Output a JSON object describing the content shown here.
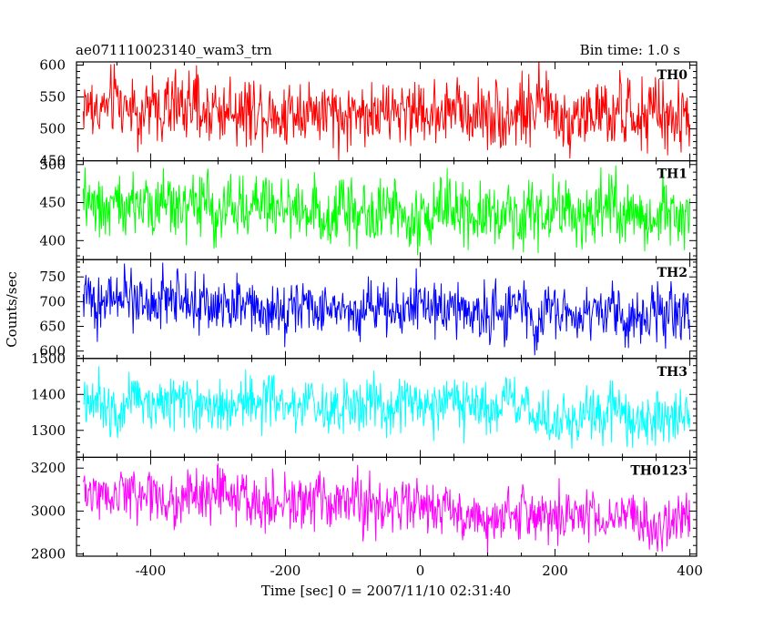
{
  "header": {
    "left_title": "ae071110023140_wam3_trn",
    "right_title": "Bin time: 1.0 s"
  },
  "chart_data": {
    "type": "line",
    "xlabel": "Time [sec] 0 = 2007/11/10 02:31:40",
    "ylabel": "Counts/sec",
    "xlim": [
      -510,
      410
    ],
    "x_range": [
      -500,
      400
    ],
    "x_step": 1.0,
    "xticks": [
      -400,
      -200,
      0,
      200,
      400
    ],
    "grid": false,
    "series": [
      {
        "name": "TH0",
        "color": "#ff0000",
        "ylim": [
          450,
          605
        ],
        "yticks": [
          450,
          500,
          550,
          600
        ],
        "start_level": 535,
        "end_level": 520,
        "noise_sd": 26
      },
      {
        "name": "TH1",
        "color": "#00ff00",
        "ylim": [
          375,
          505
        ],
        "yticks": [
          400,
          450,
          500
        ],
        "start_level": 448,
        "end_level": 433,
        "noise_sd": 21
      },
      {
        "name": "TH2",
        "color": "#0000ff",
        "ylim": [
          585,
          785
        ],
        "yticks": [
          600,
          650,
          700,
          750
        ],
        "start_level": 708,
        "end_level": 668,
        "noise_sd": 27
      },
      {
        "name": "TH3",
        "color": "#00ffff",
        "ylim": [
          1225,
          1500
        ],
        "yticks": [
          1300,
          1400,
          1500
        ],
        "start_level": 1392,
        "end_level": 1330,
        "noise_sd": 38
      },
      {
        "name": "TH0123",
        "color": "#ff00ff",
        "ylim": [
          2790,
          3250
        ],
        "yticks": [
          2800,
          3000,
          3200
        ],
        "start_level": 3085,
        "end_level": 2950,
        "noise_sd": 62
      }
    ]
  }
}
